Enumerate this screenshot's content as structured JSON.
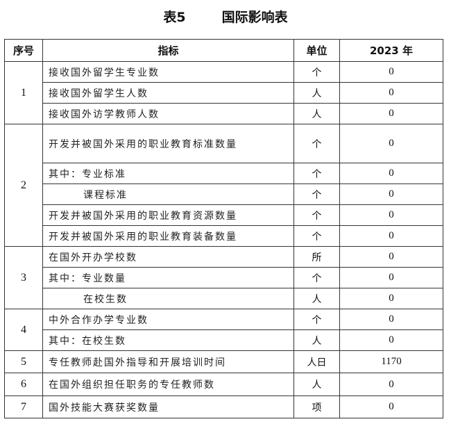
{
  "title": {
    "number": "表5",
    "name": "国际影响表"
  },
  "headers": {
    "seq": "序号",
    "indicator": "指标",
    "unit": "单位",
    "year": "2023  年"
  },
  "groups": [
    {
      "seq": "1",
      "rows": [
        {
          "indicator": "接收国外留学生专业数",
          "unit": "个",
          "value": "0"
        },
        {
          "indicator": "接收国外留学生人数",
          "unit": "人",
          "value": "0"
        },
        {
          "indicator": "接收国外访学教师人数",
          "unit": "人",
          "value": "0"
        }
      ]
    },
    {
      "seq": "2",
      "rows": [
        {
          "indicator": "开发并被国外采用的职业教育标准数量",
          "unit": "个",
          "value": "0",
          "tall": true
        },
        {
          "indicator": "其中：专业标准",
          "unit": "个",
          "value": "0"
        },
        {
          "indicator": "课程标准",
          "unit": "个",
          "value": "0",
          "indent": true
        },
        {
          "indicator": "开发并被国外采用的职业教育资源数量",
          "unit": "个",
          "value": "0"
        },
        {
          "indicator": "开发并被国外采用的职业教育装备数量",
          "unit": "个",
          "value": "0"
        }
      ]
    },
    {
      "seq": "3",
      "rows": [
        {
          "indicator": "在国外开办学校数",
          "unit": "所",
          "value": "0"
        },
        {
          "indicator": "其中：专业数量",
          "unit": "个",
          "value": "0"
        },
        {
          "indicator": "在校生数",
          "unit": "人",
          "value": "0",
          "indent": true
        }
      ]
    },
    {
      "seq": "4",
      "rows": [
        {
          "indicator": "中外合作办学专业数",
          "unit": "个",
          "value": "0"
        },
        {
          "indicator": "其中：在校生数",
          "unit": "人",
          "value": "0"
        }
      ]
    },
    {
      "seq": "5",
      "rows": [
        {
          "indicator": "专任教师赴国外指导和开展培训时间",
          "unit": "人日",
          "value": "1170",
          "h": 32
        }
      ]
    },
    {
      "seq": "6",
      "rows": [
        {
          "indicator": "在国外组织担任职务的专任教师数",
          "unit": "人",
          "value": "0",
          "h": 33
        }
      ]
    },
    {
      "seq": "7",
      "rows": [
        {
          "indicator": "国外技能大赛获奖数量",
          "unit": "项",
          "value": "0",
          "h": 32
        }
      ]
    }
  ]
}
